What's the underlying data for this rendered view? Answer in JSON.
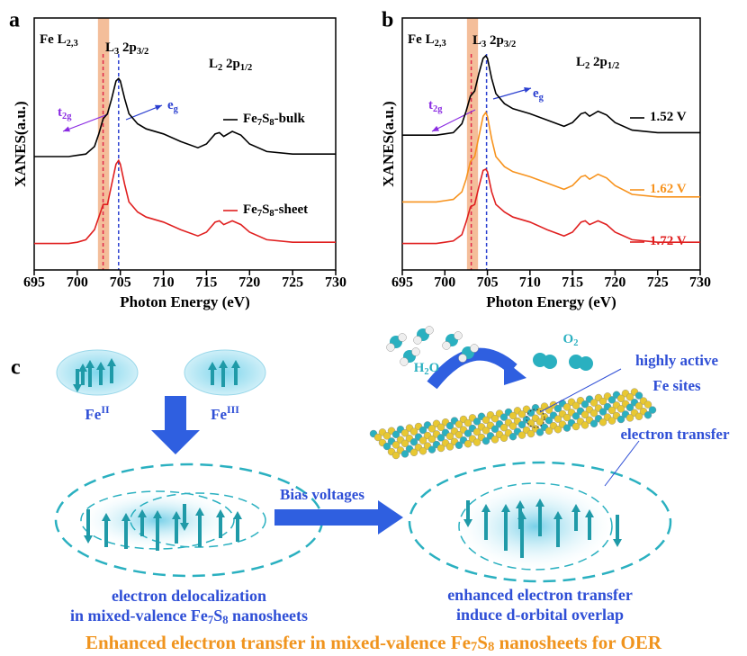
{
  "chart_data": [
    {
      "type": "line",
      "panel": "a",
      "ylabel": "XANES(a.u.)",
      "xlabel": "Photon Energy (eV)",
      "xlim": [
        695,
        730
      ],
      "xticks": [
        695,
        700,
        705,
        710,
        715,
        720,
        725,
        730
      ],
      "ylim": [
        0,
        10
      ],
      "labels": {
        "edge": "Fe L2,3",
        "l3": "L3 2p3/2",
        "l2": "L2 2p1/2",
        "t2g": "t2g",
        "eg": "eg"
      },
      "shaded_range": [
        702.4,
        703.7
      ],
      "shaded_color": "#f0a878",
      "vlines": [
        {
          "x": 703.0,
          "color": "#e0284a"
        },
        {
          "x": 704.8,
          "color": "#2a3fd0"
        }
      ],
      "x": [
        695,
        697,
        699,
        700,
        701,
        702,
        702.5,
        703,
        703.5,
        704,
        704.5,
        704.8,
        705,
        705.5,
        706,
        707,
        708,
        710,
        712,
        714,
        715,
        716,
        716.5,
        717,
        718,
        719,
        720,
        722,
        725,
        730
      ],
      "series": [
        {
          "name": "Fe7S8-bulk",
          "color": "#000000",
          "values": [
            4.5,
            4.5,
            4.5,
            4.55,
            4.6,
            4.9,
            5.4,
            6.0,
            6.2,
            6.8,
            7.5,
            7.6,
            7.5,
            6.8,
            6.2,
            5.8,
            5.6,
            5.4,
            5.1,
            4.85,
            5.0,
            5.4,
            5.45,
            5.3,
            5.5,
            5.35,
            5.0,
            4.7,
            4.6,
            4.6
          ]
        },
        {
          "name": "Fe7S8-sheet",
          "color": "#e02020",
          "values": [
            1.05,
            1.05,
            1.05,
            1.1,
            1.2,
            1.6,
            2.1,
            2.6,
            2.6,
            3.4,
            4.2,
            4.35,
            4.2,
            3.4,
            2.7,
            2.3,
            2.1,
            1.9,
            1.6,
            1.35,
            1.5,
            1.9,
            1.95,
            1.8,
            1.95,
            1.8,
            1.5,
            1.2,
            1.1,
            1.1
          ]
        }
      ]
    },
    {
      "type": "line",
      "panel": "b",
      "ylabel": "XANES(a.u.)",
      "xlabel": "Photon Energy (eV)",
      "xlim": [
        695,
        730
      ],
      "xticks": [
        695,
        700,
        705,
        710,
        715,
        720,
        725,
        730
      ],
      "ylim": [
        0,
        10
      ],
      "labels": {
        "edge": "Fe L2,3",
        "l3": "L3 2p3/2",
        "l2": "L2 2p1/2",
        "t2g": "t2g",
        "eg": "eg"
      },
      "shaded_range": [
        702.6,
        703.9
      ],
      "shaded_color": "#f0a878",
      "vlines": [
        {
          "x": 703.1,
          "color": "#e0284a"
        },
        {
          "x": 704.9,
          "color": "#2a3fd0"
        }
      ],
      "x": [
        695,
        697,
        699,
        700,
        701,
        702,
        702.5,
        703,
        703.5,
        704,
        704.5,
        704.8,
        705,
        705.5,
        706,
        707,
        708,
        710,
        712,
        714,
        715,
        716,
        716.5,
        717,
        718,
        719,
        720,
        722,
        725,
        730
      ],
      "series": [
        {
          "name": "1.52 V",
          "color": "#000000",
          "values": [
            5.35,
            5.35,
            5.35,
            5.4,
            5.45,
            5.8,
            6.3,
            6.9,
            7.1,
            7.8,
            8.4,
            8.5,
            8.4,
            7.6,
            7.0,
            6.6,
            6.4,
            6.2,
            5.95,
            5.7,
            5.85,
            6.2,
            6.25,
            6.1,
            6.3,
            6.15,
            5.85,
            5.55,
            5.45,
            5.45
          ]
        },
        {
          "name": "1.62 V",
          "color": "#f7931e",
          "values": [
            2.7,
            2.7,
            2.7,
            2.75,
            2.8,
            3.1,
            3.6,
            4.3,
            4.5,
            5.3,
            6.1,
            6.25,
            6.1,
            5.2,
            4.5,
            4.1,
            3.9,
            3.7,
            3.45,
            3.2,
            3.35,
            3.7,
            3.75,
            3.6,
            3.8,
            3.65,
            3.35,
            3.0,
            2.9,
            2.9
          ]
        },
        {
          "name": "1.72 V",
          "color": "#e02020",
          "values": [
            1.05,
            1.05,
            1.05,
            1.1,
            1.15,
            1.4,
            1.9,
            2.5,
            2.6,
            3.3,
            3.95,
            4.0,
            3.9,
            3.1,
            2.6,
            2.3,
            2.1,
            1.9,
            1.6,
            1.35,
            1.5,
            1.9,
            1.95,
            1.8,
            1.95,
            1.8,
            1.5,
            1.2,
            1.1,
            1.1
          ]
        }
      ]
    }
  ],
  "diagram": {
    "panel": "c",
    "fe2": "FeII",
    "fe3": "FeIII",
    "bias": "Bias voltages",
    "h2o": "H2O",
    "o2": "O2",
    "sites": [
      "highly active",
      "Fe sites"
    ],
    "transfer": "electron transfer",
    "left_caption": [
      "electron delocalization",
      "in mixed-valence Fe7S8 nanosheets"
    ],
    "right_caption": [
      "enhanced electron transfer",
      "induce d-orbital overlap"
    ],
    "caption": "Enhanced electron transfer in mixed-valence Fe7S8 nanosheets for OER"
  }
}
